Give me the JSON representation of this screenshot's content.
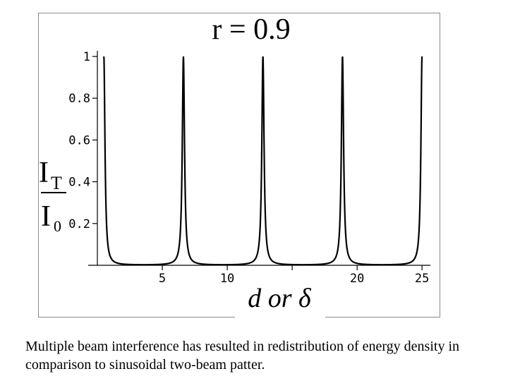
{
  "chart_data": {
    "type": "line",
    "title": "r = 0.9",
    "ylabel_numerator": "I",
    "ylabel_numerator_sub": "T",
    "ylabel_denominator": "I",
    "ylabel_denominator_sub": "0",
    "xlabel": "d or δ",
    "x_ticks": [
      "5",
      "10",
      "",
      "20",
      "25"
    ],
    "x_tick_values": [
      5,
      10,
      15,
      20,
      25
    ],
    "y_ticks": [
      "0.2",
      "0.4",
      "0.6",
      "0.8",
      "1"
    ],
    "y_tick_values": [
      0.2,
      0.4,
      0.6,
      0.8,
      1.0
    ],
    "xlim": [
      0,
      25.1
    ],
    "ylim": [
      0,
      1
    ],
    "reflectance": 0.9,
    "series": [
      {
        "color": "#000000",
        "peaks_x": [
          0.5,
          6.78,
          13.07,
          19.35,
          25.0
        ]
      }
    ]
  },
  "caption": "Multiple beam interference has resulted in redistribution of energy density in comparison to sinusoidal two-beam patter."
}
